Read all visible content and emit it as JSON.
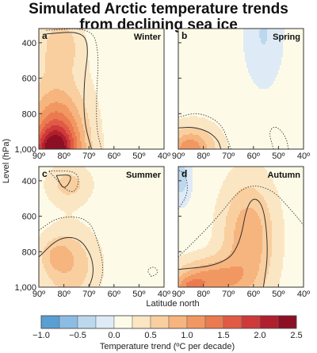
{
  "title_line1": "Simulated Arctic temperature trends",
  "title_line2": "from declining sea ice",
  "chart_data": {
    "type": "heatmap",
    "title": "Simulated Arctic temperature trends from declining sea ice",
    "ylabel": "Level (hPa)",
    "xlabel": "Latitude north",
    "x_ticks": [
      "90º",
      "80º",
      "70º",
      "60º",
      "50º",
      "40º"
    ],
    "x_values": [
      90,
      80,
      70,
      60,
      50,
      40
    ],
    "y_ticks": [
      "400",
      "600",
      "800",
      "1,000"
    ],
    "y_values": [
      400,
      600,
      800,
      1000
    ],
    "xlim": [
      90,
      40
    ],
    "ylim": [
      1000,
      300
    ],
    "colorbar": {
      "label": "Temperature trend (ºC per decade)",
      "tick_labels": [
        "−1.0",
        "−0.5",
        "0.0",
        "0.5",
        "1.0",
        "1.5",
        "2.0",
        "2.5"
      ],
      "tick_values": [
        -1.0,
        -0.5,
        0.0,
        0.5,
        1.0,
        1.5,
        2.0,
        2.5
      ],
      "bins": [
        {
          "from": -1.0,
          "to": -0.75,
          "color": "#5a9fd4"
        },
        {
          "from": -0.75,
          "to": -0.5,
          "color": "#8cbce3"
        },
        {
          "from": -0.5,
          "to": -0.25,
          "color": "#bcd8ee"
        },
        {
          "from": -0.25,
          "to": 0.0,
          "color": "#deebf6"
        },
        {
          "from": 0.0,
          "to": 0.25,
          "color": "#fdfbe8"
        },
        {
          "from": 0.25,
          "to": 0.5,
          "color": "#fbe6c4"
        },
        {
          "from": 0.5,
          "to": 0.75,
          "color": "#f9cfa0"
        },
        {
          "from": 0.75,
          "to": 1.0,
          "color": "#f6b47e"
        },
        {
          "from": 1.0,
          "to": 1.25,
          "color": "#f19862"
        },
        {
          "from": 1.25,
          "to": 1.5,
          "color": "#ea7a4f"
        },
        {
          "from": 1.5,
          "to": 1.75,
          "color": "#e05a45"
        },
        {
          "from": 1.75,
          "to": 2.0,
          "color": "#ce3a3a"
        },
        {
          "from": 2.0,
          "to": 2.25,
          "color": "#b01f2e"
        },
        {
          "from": 2.25,
          "to": 2.5,
          "color": "#8c0f23"
        }
      ]
    },
    "panels": [
      {
        "letter": "a",
        "season": "Winter",
        "background": 0.1,
        "blobs": [
          {
            "lat": 81,
            "lev": 400,
            "rlat": 8,
            "rlev": 160,
            "amp": 0.45
          },
          {
            "lat": 83,
            "lev": 1000,
            "rlat": 14,
            "rlev": 460,
            "amp": 0.75
          },
          {
            "lat": 83,
            "lev": 1000,
            "rlat": 10,
            "rlev": 260,
            "amp": 1.0
          },
          {
            "lat": 84,
            "lev": 1000,
            "rlat": 7,
            "rlev": 110,
            "amp": 0.85
          }
        ],
        "contours": [
          {
            "style": "solid",
            "points": [
              [
                87,
                350
              ],
              [
                73,
                335
              ],
              [
                70,
                420
              ],
              [
                72,
                620
              ],
              [
                72,
                840
              ],
              [
                69,
                1000
              ]
            ]
          },
          {
            "style": "dotted",
            "points": [
              [
                87,
                330
              ],
              [
                69,
                315
              ],
              [
                66,
                450
              ],
              [
                67,
                700
              ],
              [
                67,
                880
              ],
              [
                65,
                1000
              ]
            ]
          }
        ]
      },
      {
        "letter": "b",
        "season": "Spring",
        "background": 0.05,
        "blobs": [
          {
            "lat": 56,
            "lev": 350,
            "rlat": 6,
            "rlev": 230,
            "amp": -0.32
          },
          {
            "lat": 84,
            "lev": 1000,
            "rlat": 12,
            "rlev": 160,
            "amp": 0.75
          },
          {
            "lat": 86,
            "lev": 1000,
            "rlat": 6,
            "rlev": 80,
            "amp": 0.45
          }
        ],
        "contours": [
          {
            "style": "solid",
            "points": [
              [
                90,
                880
              ],
              [
                84,
                875
              ],
              [
                78,
                900
              ],
              [
                74,
                950
              ],
              [
                73,
                1000
              ]
            ]
          },
          {
            "style": "dotted",
            "points": [
              [
                90,
                820
              ],
              [
                82,
                790
              ],
              [
                73,
                850
              ],
              [
                70,
                960
              ],
              [
                69,
                1000
              ]
            ]
          },
          {
            "style": "dotted",
            "points": [
              [
                52,
                1000
              ],
              [
                54,
                900
              ],
              [
                51,
                865
              ],
              [
                47,
                930
              ],
              [
                46,
                1000
              ]
            ]
          }
        ]
      },
      {
        "letter": "c",
        "season": "Summer",
        "background": 0.1,
        "blobs": [
          {
            "lat": 78,
            "lev": 420,
            "rlat": 9,
            "rlev": 110,
            "amp": 0.5
          },
          {
            "lat": 78,
            "lev": 880,
            "rlat": 12,
            "rlev": 220,
            "amp": 0.6
          },
          {
            "lat": 83,
            "lev": 820,
            "rlat": 6,
            "rlev": 90,
            "amp": 0.35
          }
        ],
        "contours": [
          {
            "style": "solid",
            "points": [
              [
                83,
                370
              ],
              [
                76,
                365
              ],
              [
                80,
                460
              ],
              [
                83,
                370
              ]
            ]
          },
          {
            "style": "dotted",
            "points": [
              [
                86,
                345
              ],
              [
                73,
                345
              ],
              [
                76,
                500
              ],
              [
                86,
                345
              ]
            ]
          },
          {
            "style": "solid",
            "points": [
              [
                90,
                830
              ],
              [
                82,
                720
              ],
              [
                74,
                720
              ],
              [
                69,
                820
              ],
              [
                68,
                920
              ],
              [
                70,
                1000
              ]
            ]
          },
          {
            "style": "dotted",
            "points": [
              [
                90,
                680
              ],
              [
                82,
                600
              ],
              [
                70,
                610
              ],
              [
                66,
                760
              ],
              [
                64,
                900
              ],
              [
                66,
                1000
              ]
            ]
          },
          {
            "style": "dotted",
            "points": [
              [
                45,
                940
              ],
              [
                47,
                905
              ],
              [
                44,
                880
              ],
              [
                42,
                920
              ],
              [
                45,
                940
              ]
            ]
          }
        ]
      },
      {
        "letter": "d",
        "season": "Autumn",
        "background": 0.1,
        "blobs": [
          {
            "lat": 89,
            "lev": 390,
            "rlat": 4,
            "rlev": 130,
            "amp": -0.5
          },
          {
            "lat": 62,
            "lev": 720,
            "rlat": 11,
            "rlev": 330,
            "amp": 0.85
          },
          {
            "lat": 78,
            "lev": 960,
            "rlat": 14,
            "rlev": 120,
            "amp": 1.0
          },
          {
            "lat": 86,
            "lev": 1000,
            "rlat": 6,
            "rlev": 60,
            "amp": 0.55
          }
        ],
        "contours": [
          {
            "style": "solid",
            "points": [
              [
                90,
                900
              ],
              [
                75,
                880
              ],
              [
                66,
                800
              ],
              [
                62,
                490
              ],
              [
                56,
                520
              ],
              [
                54,
                800
              ],
              [
                56,
                1000
              ]
            ]
          },
          {
            "style": "dotted",
            "points": [
              [
                90,
                830
              ],
              [
                75,
                620
              ],
              [
                64,
                420
              ],
              [
                53,
                440
              ],
              [
                44,
                580
              ],
              [
                40,
                650
              ]
            ]
          },
          {
            "style": "dotted",
            "points": [
              [
                90,
                560
              ],
              [
                86,
                470
              ],
              [
                87,
                360
              ],
              [
                90,
                340
              ]
            ]
          }
        ]
      }
    ]
  }
}
